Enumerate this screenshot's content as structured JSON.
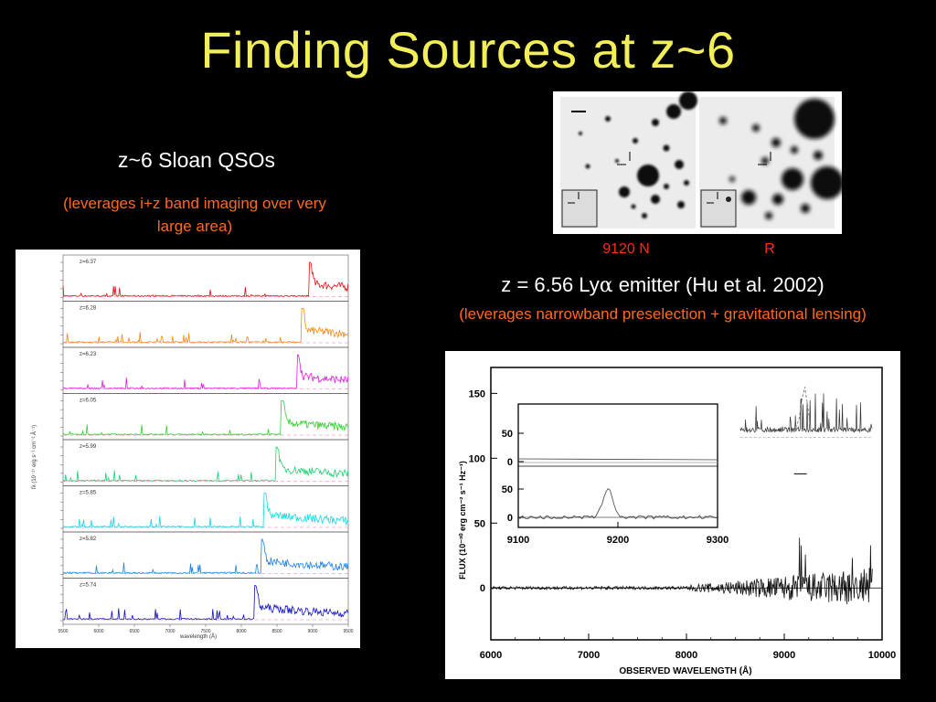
{
  "slide": {
    "title": "Finding Sources at z~6",
    "left_heading": "z~6 Sloan QSOs",
    "left_subtitle": "(leverages i+z band imaging over very large area)",
    "image_label_n": "9120 N",
    "image_label_r": "R",
    "right_heading_pre": "z = 6.56 Ly",
    "right_heading_alpha": "α",
    "right_heading_post": " emitter (Hu et al. 2002)",
    "right_subtitle": "(leverages narrowband preselection + gravitational lensing)"
  },
  "colors": {
    "title": "#f2ee57",
    "subtitle": "#ff6a1e",
    "image_label": "#ff2a1a",
    "lya_label": "#d8003a"
  },
  "chart_data": [
    {
      "type": "line",
      "name": "qso-spectra-stack",
      "xlabel": "wavelength (Å)",
      "ylabel": "fλ (10⁻¹⁷ erg s⁻¹ cm⁻² Å⁻¹)",
      "xlim": [
        5500,
        9500
      ],
      "x_ticks": [
        "5500",
        "6000",
        "6500",
        "7000",
        "7500",
        "8000",
        "8500",
        "9000",
        "9500"
      ],
      "series": [
        {
          "label": "z=6.37",
          "z": 6.37,
          "color": "#e01010"
        },
        {
          "label": "z=6.28",
          "z": 6.28,
          "color": "#f08a1a"
        },
        {
          "label": "z=6.23",
          "z": 6.23,
          "color": "#e020e0"
        },
        {
          "label": "z=6.05",
          "z": 6.05,
          "color": "#30d030"
        },
        {
          "label": "z=5.99",
          "z": 5.99,
          "color": "#18d070"
        },
        {
          "label": "z=5.85",
          "z": 5.85,
          "color": "#10d8e0"
        },
        {
          "label": "z=5.82",
          "z": 5.82,
          "color": "#2080e0"
        },
        {
          "label": "z=5.74",
          "z": 5.74,
          "color": "#1010c0"
        }
      ]
    },
    {
      "type": "line",
      "name": "lya-emitter-spectrum",
      "xlabel": "OBSERVED WAVELENGTH (Å)",
      "ylabel": "FLUX (10⁻³⁰ erg cm⁻² s⁻¹ Hz⁻¹)",
      "xlim": [
        6000,
        10000
      ],
      "ylim": [
        -40,
        170
      ],
      "x_ticks": [
        6000,
        7000,
        8000,
        9000,
        10000
      ],
      "y_ticks": [
        0,
        50,
        100,
        150
      ],
      "inset": {
        "xlim": [
          9100,
          9300
        ],
        "x_ticks": [
          9100,
          9200,
          9300
        ],
        "y_ticks_top": [
          0,
          50
        ],
        "y_ticks_bottom": [
          0,
          50
        ],
        "annotation_pre": "Ly",
        "annotation_alpha": "α"
      }
    }
  ]
}
